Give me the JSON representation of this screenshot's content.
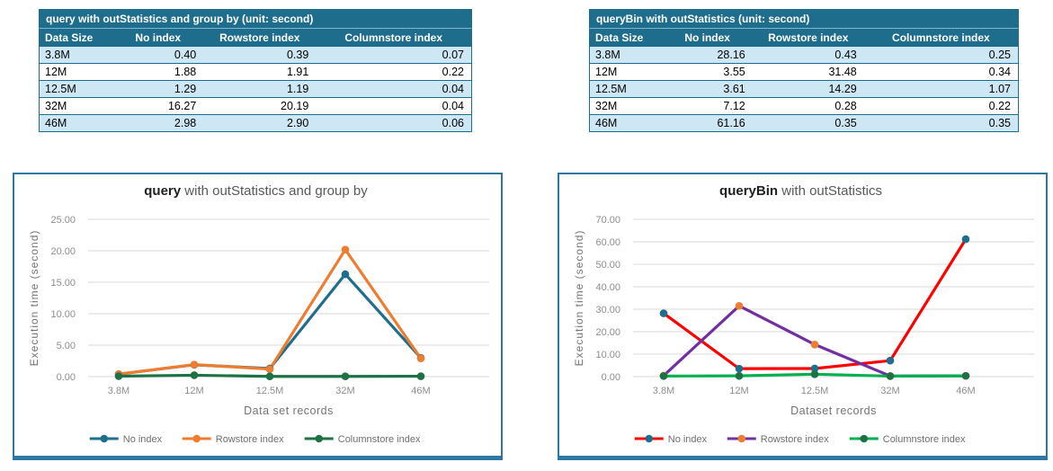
{
  "tables": [
    {
      "title": "query with outStatistics and group by (unit: second)",
      "headers": [
        "Data Size",
        "No index",
        "Rowstore index",
        "Columnstore index"
      ],
      "rows": [
        [
          "3.8M",
          "0.40",
          "0.39",
          "0.07"
        ],
        [
          "12M",
          "1.88",
          "1.91",
          "0.22"
        ],
        [
          "12.5M",
          "1.29",
          "1.19",
          "0.04"
        ],
        [
          "32M",
          "16.27",
          "20.19",
          "0.04"
        ],
        [
          "46M",
          "2.98",
          "2.90",
          "0.06"
        ]
      ]
    },
    {
      "title": "queryBin with outStatistics (unit: second)",
      "headers": [
        "Data Size",
        "No index",
        "Rowstore index",
        "Columnstore index"
      ],
      "rows": [
        [
          "3.8M",
          "28.16",
          "0.43",
          "0.25"
        ],
        [
          "12M",
          "3.55",
          "31.48",
          "0.34"
        ],
        [
          "12.5M",
          "3.61",
          "14.29",
          "1.07"
        ],
        [
          "32M",
          "7.12",
          "0.28",
          "0.22"
        ],
        [
          "46M",
          "61.16",
          "0.35",
          "0.35"
        ]
      ]
    }
  ],
  "chart_data": [
    {
      "type": "line",
      "title_bold": "query",
      "title_rest": " with outStatistics and group by",
      "categories": [
        "3.8M",
        "12M",
        "12.5M",
        "32M",
        "46M"
      ],
      "series": [
        {
          "name": "No index",
          "values": [
            0.4,
            1.88,
            1.29,
            16.27,
            2.98
          ],
          "line_color": "#1F6E8C",
          "marker_color": "#1F6E8C"
        },
        {
          "name": "Rowstore index",
          "values": [
            0.39,
            1.91,
            1.19,
            20.19,
            2.9
          ],
          "line_color": "#ED7D31",
          "marker_color": "#ED7D31"
        },
        {
          "name": "Columnstore index",
          "values": [
            0.07,
            0.22,
            0.04,
            0.04,
            0.06
          ],
          "line_color": "#1E7145",
          "marker_color": "#1E7145"
        }
      ],
      "xlabel": "Data set records",
      "ylabel": "Execution time (second)",
      "ylim": [
        0,
        25
      ],
      "ytick_step": 5,
      "ytick_labels": [
        "0.00",
        "5.00",
        "10.00",
        "15.00",
        "20.00",
        "25.00"
      ],
      "grid": true,
      "legend_position": "bottom"
    },
    {
      "type": "line",
      "title_bold": "queryBin",
      "title_rest": " with outStatistics",
      "categories": [
        "3.8M",
        "12M",
        "12.5M",
        "32M",
        "46M"
      ],
      "series": [
        {
          "name": "No index",
          "values": [
            28.16,
            3.55,
            3.61,
            7.12,
            61.16
          ],
          "line_color": "#FF0000",
          "marker_color": "#1F6E8C"
        },
        {
          "name": "Rowstore index",
          "values": [
            0.43,
            31.48,
            14.29,
            0.28,
            0.35
          ],
          "line_color": "#7030A0",
          "marker_color": "#ED7D31"
        },
        {
          "name": "Columnstore index",
          "values": [
            0.25,
            0.34,
            1.07,
            0.22,
            0.35
          ],
          "line_color": "#00B050",
          "marker_color": "#1E7145"
        }
      ],
      "xlabel": "Dataset records",
      "ylabel": "Execution time (second)",
      "ylim": [
        0,
        70
      ],
      "ytick_step": 10,
      "ytick_labels": [
        "0.00",
        "10.00",
        "20.00",
        "30.00",
        "40.00",
        "50.00",
        "60.00",
        "70.00"
      ],
      "grid": true,
      "legend_position": "bottom"
    }
  ],
  "colors": {
    "table_header_bg": "#1F6D8C",
    "table_row_alt_bg": "#CDE7F4",
    "chart_border": "#2F77A3",
    "gridline": "#D9D9D9",
    "tick_text": "#8E8E8E",
    "axis_label_text": "#757575",
    "legend_text": "#6F6F6F",
    "title_bold_text": "#1F1F1F",
    "title_rest_text": "#595959"
  }
}
